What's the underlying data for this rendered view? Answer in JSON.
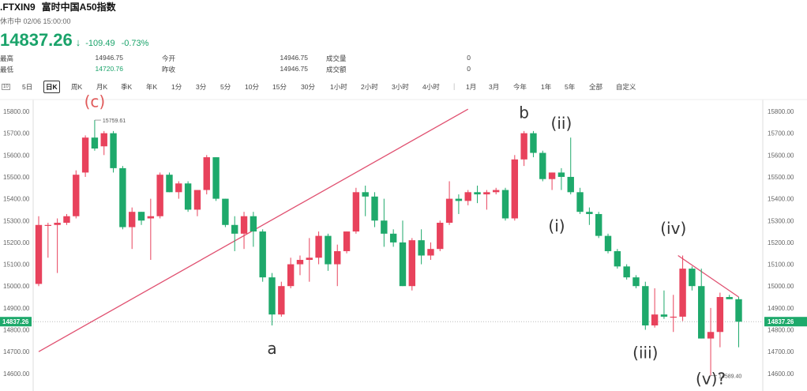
{
  "header": {
    "symbol": ".FTXIN9",
    "name": "富时中国A50指数",
    "status": "休市中 02/06 15:00:00",
    "price": "14837.26",
    "change": "-109.49",
    "change_pct": "-0.73%",
    "arrow": "↓"
  },
  "stats": {
    "high_label": "最高",
    "high": "14946.75",
    "low_label": "最低",
    "low": "14720.76",
    "open_label": "今开",
    "open": "14946.75",
    "prev_label": "昨收",
    "prev": "14946.75",
    "vol_label": "成交量",
    "vol": "0",
    "amt_label": "成交额",
    "amt": "0"
  },
  "toolbar": {
    "small": "10",
    "periods": [
      "5日",
      "日K",
      "周K",
      "月K",
      "季K",
      "年K",
      "1分",
      "3分",
      "5分",
      "10分",
      "15分",
      "30分",
      "1小时",
      "2小时",
      "3小时",
      "4小时"
    ],
    "ranges": [
      "1月",
      "3月",
      "今年",
      "1年",
      "5年",
      "全部",
      "自定义"
    ],
    "active": "日K"
  },
  "colors": {
    "up": "#e8425c",
    "down": "#1ea96b",
    "trend": "#e05070",
    "label_red": "#e05a5a"
  },
  "chart_data": {
    "type": "candlestick",
    "ylim": [
      14550,
      15850
    ],
    "y_ticks": [
      "15800.00",
      "15700.00",
      "15600.00",
      "15500.00",
      "15400.00",
      "15300.00",
      "15200.00",
      "15100.00",
      "15000.00",
      "14900.00",
      "14800.00",
      "14700.00",
      "14600.00"
    ],
    "last_price_label": "14837.26",
    "max_label": "15759.61",
    "min_label": "14589.40",
    "candles": [
      {
        "o": 15010,
        "h": 15320,
        "l": 15000,
        "c": 15280
      },
      {
        "o": 15280,
        "h": 15290,
        "l": 15130,
        "c": 15280
      },
      {
        "o": 15280,
        "h": 15310,
        "l": 15060,
        "c": 15290
      },
      {
        "o": 15290,
        "h": 15330,
        "l": 15280,
        "c": 15320
      },
      {
        "o": 15320,
        "h": 15530,
        "l": 15310,
        "c": 15510
      },
      {
        "o": 15520,
        "h": 15690,
        "l": 15500,
        "c": 15680
      },
      {
        "o": 15680,
        "h": 15760,
        "l": 15620,
        "c": 15630
      },
      {
        "o": 15640,
        "h": 15710,
        "l": 15600,
        "c": 15700
      },
      {
        "o": 15700,
        "h": 15710,
        "l": 15520,
        "c": 15540
      },
      {
        "o": 15540,
        "h": 15550,
        "l": 15260,
        "c": 15270
      },
      {
        "o": 15270,
        "h": 15360,
        "l": 15170,
        "c": 15340
      },
      {
        "o": 15340,
        "h": 15340,
        "l": 15280,
        "c": 15300
      },
      {
        "o": 15310,
        "h": 15400,
        "l": 15120,
        "c": 15320
      },
      {
        "o": 15320,
        "h": 15520,
        "l": 15310,
        "c": 15510
      },
      {
        "o": 15510,
        "h": 15520,
        "l": 15430,
        "c": 15430
      },
      {
        "o": 15430,
        "h": 15480,
        "l": 15400,
        "c": 15470
      },
      {
        "o": 15470,
        "h": 15480,
        "l": 15340,
        "c": 15350
      },
      {
        "o": 15350,
        "h": 15440,
        "l": 15320,
        "c": 15440
      },
      {
        "o": 15440,
        "h": 15600,
        "l": 15420,
        "c": 15590
      },
      {
        "o": 15590,
        "h": 15590,
        "l": 15390,
        "c": 15400
      },
      {
        "o": 15400,
        "h": 15400,
        "l": 15270,
        "c": 15280
      },
      {
        "o": 15280,
        "h": 15320,
        "l": 15160,
        "c": 15240
      },
      {
        "o": 15240,
        "h": 15340,
        "l": 15170,
        "c": 15320
      },
      {
        "o": 15320,
        "h": 15340,
        "l": 15180,
        "c": 15250
      },
      {
        "o": 15250,
        "h": 15260,
        "l": 15020,
        "c": 15040
      },
      {
        "o": 15040,
        "h": 15060,
        "l": 14820,
        "c": 14870
      },
      {
        "o": 14870,
        "h": 15020,
        "l": 14860,
        "c": 15000
      },
      {
        "o": 15000,
        "h": 15130,
        "l": 14990,
        "c": 15100
      },
      {
        "o": 15100,
        "h": 15140,
        "l": 15050,
        "c": 15120
      },
      {
        "o": 15120,
        "h": 15220,
        "l": 15020,
        "c": 15130
      },
      {
        "o": 15130,
        "h": 15250,
        "l": 15100,
        "c": 15230
      },
      {
        "o": 15230,
        "h": 15240,
        "l": 15070,
        "c": 15100
      },
      {
        "o": 15100,
        "h": 15190,
        "l": 15000,
        "c": 15160
      },
      {
        "o": 15160,
        "h": 15250,
        "l": 15150,
        "c": 15250
      },
      {
        "o": 15250,
        "h": 15450,
        "l": 15240,
        "c": 15430
      },
      {
        "o": 15430,
        "h": 15460,
        "l": 15320,
        "c": 15410
      },
      {
        "o": 15410,
        "h": 15430,
        "l": 15270,
        "c": 15300
      },
      {
        "o": 15300,
        "h": 15400,
        "l": 15180,
        "c": 15240
      },
      {
        "o": 15240,
        "h": 15260,
        "l": 15180,
        "c": 15200
      },
      {
        "o": 15200,
        "h": 15300,
        "l": 15000,
        "c": 15000
      },
      {
        "o": 15000,
        "h": 15220,
        "l": 14980,
        "c": 15210
      },
      {
        "o": 15210,
        "h": 15260,
        "l": 15100,
        "c": 15140
      },
      {
        "o": 15140,
        "h": 15200,
        "l": 15120,
        "c": 15170
      },
      {
        "o": 15170,
        "h": 15300,
        "l": 15160,
        "c": 15290
      },
      {
        "o": 15290,
        "h": 15480,
        "l": 15280,
        "c": 15400
      },
      {
        "o": 15400,
        "h": 15420,
        "l": 15330,
        "c": 15390
      },
      {
        "o": 15390,
        "h": 15440,
        "l": 15370,
        "c": 15430
      },
      {
        "o": 15430,
        "h": 15460,
        "l": 15380,
        "c": 15420
      },
      {
        "o": 15420,
        "h": 15440,
        "l": 15350,
        "c": 15430
      },
      {
        "o": 15430,
        "h": 15450,
        "l": 15420,
        "c": 15440
      },
      {
        "o": 15440,
        "h": 15450,
        "l": 15300,
        "c": 15310
      },
      {
        "o": 15310,
        "h": 15600,
        "l": 15300,
        "c": 15580
      },
      {
        "o": 15580,
        "h": 15710,
        "l": 15550,
        "c": 15700
      },
      {
        "o": 15700,
        "h": 15710,
        "l": 15590,
        "c": 15610
      },
      {
        "o": 15610,
        "h": 15620,
        "l": 15480,
        "c": 15490
      },
      {
        "o": 15490,
        "h": 15520,
        "l": 15440,
        "c": 15520
      },
      {
        "o": 15520,
        "h": 15540,
        "l": 15440,
        "c": 15500
      },
      {
        "o": 15500,
        "h": 15680,
        "l": 15420,
        "c": 15430
      },
      {
        "o": 15430,
        "h": 15450,
        "l": 15330,
        "c": 15340
      },
      {
        "o": 15340,
        "h": 15360,
        "l": 15280,
        "c": 15330
      },
      {
        "o": 15330,
        "h": 15340,
        "l": 15220,
        "c": 15230
      },
      {
        "o": 15230,
        "h": 15240,
        "l": 15150,
        "c": 15160
      },
      {
        "o": 15160,
        "h": 15170,
        "l": 15080,
        "c": 15090
      },
      {
        "o": 15090,
        "h": 15100,
        "l": 15030,
        "c": 15040
      },
      {
        "o": 15040,
        "h": 15050,
        "l": 14990,
        "c": 15000
      },
      {
        "o": 15000,
        "h": 15020,
        "l": 14800,
        "c": 14820
      },
      {
        "o": 14820,
        "h": 14990,
        "l": 14810,
        "c": 14870
      },
      {
        "o": 14870,
        "h": 14980,
        "l": 14850,
        "c": 14860
      },
      {
        "o": 14860,
        "h": 14960,
        "l": 14790,
        "c": 14860
      },
      {
        "o": 14860,
        "h": 15140,
        "l": 14840,
        "c": 15080
      },
      {
        "o": 15080,
        "h": 15090,
        "l": 14980,
        "c": 15000
      },
      {
        "o": 15000,
        "h": 15080,
        "l": 14760,
        "c": 14760
      },
      {
        "o": 14760,
        "h": 14900,
        "l": 14590,
        "c": 14790
      },
      {
        "o": 14790,
        "h": 14970,
        "l": 14720,
        "c": 14950
      },
      {
        "o": 14950,
        "h": 14960,
        "l": 14940,
        "c": 14940
      },
      {
        "o": 14940,
        "h": 14950,
        "l": 14720,
        "c": 14837
      }
    ],
    "trendlines": [
      {
        "x1": 0,
        "v1": 14700,
        "x2": 46,
        "v2": 15810
      },
      {
        "x1": 68.5,
        "v1": 15140,
        "x2": 75,
        "v2": 14950
      }
    ],
    "wave_labels": [
      {
        "text": "(c)",
        "i": 6,
        "v": 15820,
        "red": true
      },
      {
        "text": "a",
        "i": 25,
        "v": 14690,
        "red": false
      },
      {
        "text": "b",
        "i": 52,
        "v": 15770,
        "red": false
      },
      {
        "text": "(ii)",
        "i": 56,
        "v": 15720,
        "red": false
      },
      {
        "text": "(i)",
        "i": 55.5,
        "v": 15250,
        "red": false
      },
      {
        "text": "(iii)",
        "i": 65,
        "v": 14670,
        "red": false
      },
      {
        "text": "(iv)",
        "i": 68,
        "v": 15240,
        "red": false
      },
      {
        "text": "(v)?",
        "i": 72,
        "v": 14550,
        "red": false
      }
    ]
  }
}
